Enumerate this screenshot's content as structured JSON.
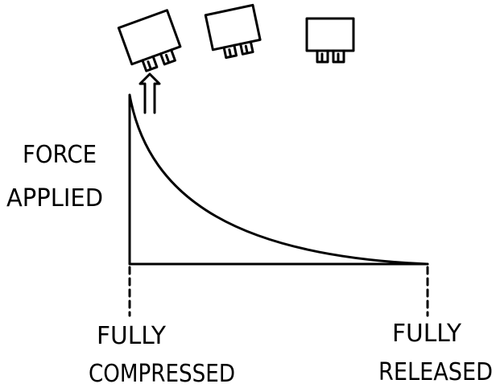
{
  "y_axis_label": [
    "FORCE",
    "APPLIED"
  ],
  "x_axis_labels": [
    {
      "lines": [
        "FULLY",
        "COMPRESSED"
      ]
    },
    {
      "lines": [
        "FULLY",
        "RELEASED"
      ]
    }
  ]
}
